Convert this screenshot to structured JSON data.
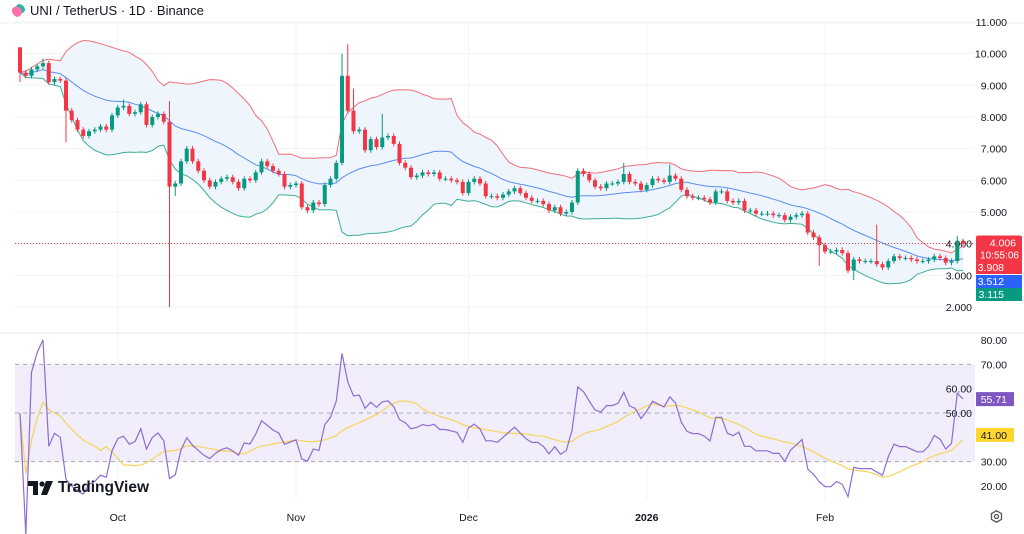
{
  "title": {
    "symbol": "UNI / TetherUS · 1D · Binance"
  },
  "brand": {
    "name": "TradingView"
  },
  "colors": {
    "up": "#089981",
    "down": "#f23645",
    "bb_basis": "#5b8def",
    "bb_upper": "#ef6f78",
    "bb_lower": "#3fae94",
    "bb_fill": "#eef5fd",
    "rsi": "#8e6bd1",
    "rsi_ma": "#f5d55c",
    "rsi_band": "#f1edfb"
  },
  "chart_data": {
    "type": "candlestick",
    "price_axis": {
      "ticks": [
        "11.000",
        "10.000",
        "9.000",
        "8.000",
        "7.000",
        "6.000",
        "5.000",
        "4.000",
        "3.000",
        "2.000"
      ],
      "range": [
        2,
        11
      ]
    },
    "x_ticks": [
      "Oct",
      "Nov",
      "Dec",
      "2026",
      "Feb"
    ],
    "close": [
      9.4,
      9.3,
      9.5,
      9.6,
      9.7,
      9.1,
      9.2,
      9.15,
      8.2,
      7.9,
      7.6,
      7.4,
      7.55,
      7.6,
      7.7,
      7.6,
      8.05,
      8.3,
      8.35,
      8.1,
      8.15,
      8.4,
      7.75,
      8.0,
      8.1,
      7.85,
      5.8,
      5.9,
      6.6,
      7.0,
      6.6,
      6.3,
      6.0,
      5.8,
      5.95,
      6.05,
      6.1,
      5.95,
      5.75,
      6.05,
      6.0,
      6.25,
      6.6,
      6.45,
      6.3,
      6.2,
      5.8,
      5.85,
      5.9,
      5.15,
      5.05,
      5.3,
      5.25,
      5.85,
      6.05,
      6.55,
      9.3,
      8.2,
      7.55,
      7.6,
      6.95,
      7.3,
      7.05,
      7.35,
      7.4,
      7.15,
      6.55,
      6.4,
      6.1,
      6.15,
      6.25,
      6.2,
      6.25,
      6.05,
      6.05,
      6.0,
      5.95,
      5.6,
      5.95,
      6.05,
      5.9,
      5.5,
      5.5,
      5.45,
      5.55,
      5.65,
      5.75,
      5.6,
      5.45,
      5.35,
      5.35,
      5.25,
      5.05,
      5.15,
      4.95,
      5.0,
      5.3,
      6.3,
      6.2,
      6.0,
      5.8,
      5.75,
      5.9,
      5.9,
      5.95,
      6.2,
      5.95,
      5.9,
      5.7,
      5.85,
      6.05,
      6.0,
      5.95,
      6.15,
      6.05,
      5.7,
      5.5,
      5.45,
      5.45,
      5.4,
      5.3,
      5.65,
      5.65,
      5.35,
      5.3,
      5.35,
      5.05,
      5.05,
      4.95,
      4.95,
      4.95,
      4.9,
      4.9,
      4.75,
      4.85,
      4.9,
      4.95,
      4.35,
      4.2,
      3.95,
      3.75,
      3.75,
      3.8,
      3.7,
      3.15,
      3.5,
      3.45,
      3.45,
      3.45,
      3.35,
      3.25,
      3.45,
      3.6,
      3.55,
      3.55,
      3.5,
      3.45,
      3.45,
      3.5,
      3.6,
      3.55,
      3.4,
      3.45,
      4.08,
      4.006
    ],
    "first_open": 10.2,
    "wick_extremes": {
      "0": {
        "high": 10.2,
        "low": 9.1
      },
      "4": {
        "high": 9.85
      },
      "8": {
        "low": 7.2
      },
      "18": {
        "high": 8.55
      },
      "26": {
        "high": 8.5,
        "low": 2.0
      },
      "27": {
        "low": 5.5
      },
      "56": {
        "high": 10.0
      },
      "57": {
        "high": 10.3
      },
      "58": {
        "high": 8.9
      },
      "63": {
        "high": 8.1
      },
      "105": {
        "high": 6.55
      },
      "113": {
        "high": 6.5
      },
      "139": {
        "low": 3.3
      },
      "145": {
        "low": 2.85
      },
      "149": {
        "high": 4.6
      },
      "163": {
        "high": 4.25
      }
    },
    "indicators": {
      "bollinger": {
        "length": 20,
        "mult": 2
      },
      "rsi": {
        "length": 14,
        "ma_length": 14
      }
    },
    "price_labels": {
      "last": "4.006",
      "countdown": "10:55:06",
      "bb_upper": "3.908",
      "bb_basis": "3.512",
      "bb_lower": "3.115"
    },
    "rsi_axis": {
      "ticks": [
        "80.00",
        "70.00",
        "60.00",
        "50.00",
        "30.00",
        "20.00"
      ],
      "range": [
        15,
        82
      ],
      "bands": [
        70,
        50,
        30
      ]
    },
    "rsi_labels": {
      "rsi": "55.71",
      "ma": "41.00"
    }
  }
}
